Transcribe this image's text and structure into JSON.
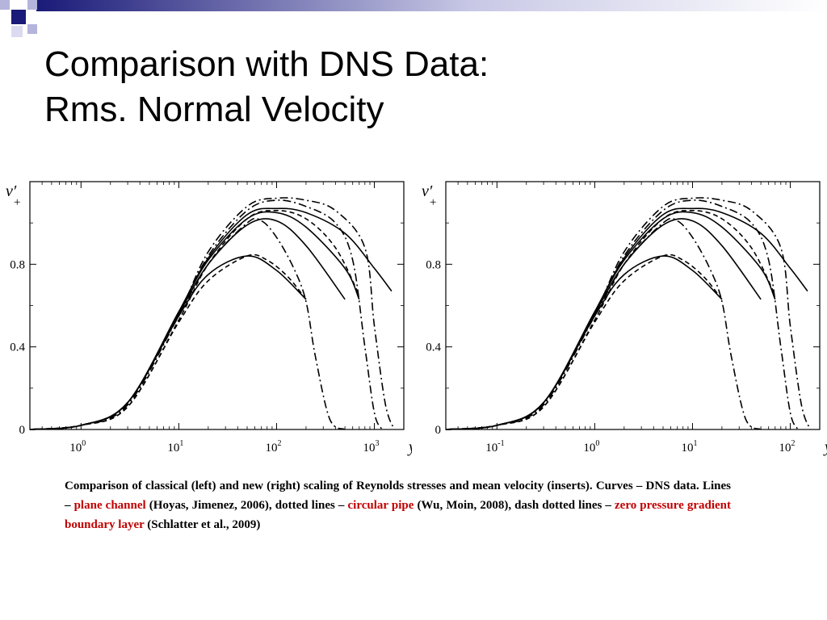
{
  "title": {
    "line1": "Comparison with DNS Data:",
    "line2": "Rms. Normal Velocity"
  },
  "theme": {
    "accent_dark": "#1a1a78",
    "accent_light": "#b4b4dc",
    "highlight": "#c00000"
  },
  "caption": {
    "part1": "Comparison of classical (left) and new (right) scaling of Reynolds stresses and mean velocity (inserts). Curves – DNS data. Lines – ",
    "plane_channel": "plane channel",
    "part2": " (Hoyas, Jimenez, 2006), dotted lines – ",
    "circular_pipe": "circular pipe",
    "part3": " (Wu, Moin, 2008), dash dotted lines – ",
    "boundary_layer": "zero pressure gradient boundary layer",
    "part4": " (Schlatter et al., 2009)"
  },
  "chart_data": [
    {
      "type": "line",
      "title": "",
      "xlabel": "y+",
      "ylabel": "v'+",
      "xscale": "log",
      "xlim": [
        0.3,
        2000
      ],
      "ylim": [
        0,
        1.2
      ],
      "ytick_labels": [
        "0",
        "0.4",
        "0.8"
      ],
      "yticks": [
        0,
        0.4,
        0.8
      ],
      "xtick_labels": [
        {
          "base": "10",
          "exp": "0"
        },
        {
          "base": "10",
          "exp": "1"
        },
        {
          "base": "10",
          "exp": "2"
        },
        {
          "base": "10",
          "exp": "3"
        }
      ],
      "xticks": [
        1,
        10,
        100,
        1000
      ],
      "series": [
        {
          "style": "solid",
          "x": [
            0.3,
            1,
            3,
            10,
            20,
            50,
            100,
            200
          ],
          "y": [
            0,
            0.02,
            0.13,
            0.55,
            0.75,
            0.84,
            0.77,
            0.63
          ]
        },
        {
          "style": "solid",
          "x": [
            0.3,
            1,
            3,
            10,
            20,
            50,
            100,
            200,
            500
          ],
          "y": [
            0,
            0.02,
            0.13,
            0.56,
            0.8,
            0.99,
            1.01,
            0.89,
            0.63
          ]
        },
        {
          "style": "solid",
          "x": [
            0.3,
            1,
            3,
            10,
            20,
            50,
            100,
            200,
            500,
            700
          ],
          "y": [
            0,
            0.02,
            0.13,
            0.57,
            0.82,
            1.02,
            1.05,
            0.98,
            0.78,
            0.63
          ]
        },
        {
          "style": "solid",
          "x": [
            0.3,
            1,
            3,
            10,
            20,
            50,
            100,
            200,
            500,
            1000,
            1500
          ],
          "y": [
            0,
            0.02,
            0.13,
            0.57,
            0.83,
            1.04,
            1.07,
            1.05,
            0.95,
            0.78,
            0.67
          ]
        },
        {
          "style": "dashed",
          "x": [
            0.3,
            1,
            3,
            10,
            20,
            50,
            80,
            130,
            200
          ],
          "y": [
            0,
            0.02,
            0.11,
            0.52,
            0.72,
            0.84,
            0.82,
            0.74,
            0.63
          ]
        },
        {
          "style": "dashed",
          "x": [
            0.3,
            1,
            3,
            10,
            20,
            50,
            100,
            200,
            400,
            700
          ],
          "y": [
            0,
            0.02,
            0.11,
            0.53,
            0.8,
            1.02,
            1.06,
            1.02,
            0.88,
            0.65
          ]
        },
        {
          "style": "dashdot",
          "x": [
            0.3,
            1,
            3,
            10,
            20,
            50,
            70,
            100,
            150,
            200,
            250,
            350,
            500
          ],
          "y": [
            0,
            0.02,
            0.12,
            0.55,
            0.8,
            1.0,
            1.01,
            0.93,
            0.78,
            0.62,
            0.35,
            0.05,
            0
          ]
        },
        {
          "style": "dashdot",
          "x": [
            0.3,
            1,
            3,
            10,
            20,
            50,
            100,
            200,
            400,
            600,
            800,
            1000,
            1200
          ],
          "y": [
            0,
            0.02,
            0.12,
            0.56,
            0.84,
            1.06,
            1.11,
            1.08,
            1.0,
            0.82,
            0.4,
            0.08,
            0
          ]
        },
        {
          "style": "dashdot",
          "x": [
            0.3,
            1,
            3,
            10,
            20,
            50,
            100,
            200,
            400,
            800,
            1000,
            1300,
            1600
          ],
          "y": [
            0,
            0.02,
            0.12,
            0.56,
            0.86,
            1.08,
            1.12,
            1.11,
            1.06,
            0.88,
            0.5,
            0.12,
            0
          ]
        }
      ]
    },
    {
      "type": "line",
      "title": "",
      "xlabel": "yv",
      "ylabel": "v'+",
      "xscale": "log",
      "xlim": [
        0.03,
        200
      ],
      "ylim": [
        0,
        1.2
      ],
      "ytick_labels": [
        "0",
        "0.4",
        "0.8"
      ],
      "yticks": [
        0,
        0.4,
        0.8
      ],
      "xtick_labels": [
        {
          "base": "10",
          "exp": "-1"
        },
        {
          "base": "10",
          "exp": "0"
        },
        {
          "base": "10",
          "exp": "1"
        },
        {
          "base": "10",
          "exp": "2"
        }
      ],
      "xticks": [
        0.1,
        1,
        10,
        100
      ],
      "series": [
        {
          "style": "solid",
          "x": [
            0.03,
            0.1,
            0.3,
            1,
            2,
            5,
            10,
            20
          ],
          "y": [
            0,
            0.02,
            0.13,
            0.55,
            0.75,
            0.84,
            0.77,
            0.63
          ]
        },
        {
          "style": "solid",
          "x": [
            0.03,
            0.1,
            0.3,
            1,
            2,
            5,
            10,
            20,
            50
          ],
          "y": [
            0,
            0.02,
            0.13,
            0.56,
            0.8,
            0.99,
            1.01,
            0.89,
            0.63
          ]
        },
        {
          "style": "solid",
          "x": [
            0.03,
            0.1,
            0.3,
            1,
            2,
            5,
            10,
            20,
            50,
            70
          ],
          "y": [
            0,
            0.02,
            0.13,
            0.57,
            0.82,
            1.02,
            1.05,
            0.98,
            0.78,
            0.63
          ]
        },
        {
          "style": "solid",
          "x": [
            0.03,
            0.1,
            0.3,
            1,
            2,
            5,
            10,
            20,
            50,
            100,
            150
          ],
          "y": [
            0,
            0.02,
            0.13,
            0.57,
            0.83,
            1.04,
            1.07,
            1.05,
            0.95,
            0.78,
            0.67
          ]
        },
        {
          "style": "dashed",
          "x": [
            0.03,
            0.1,
            0.3,
            1,
            2,
            5,
            8,
            13,
            20
          ],
          "y": [
            0,
            0.02,
            0.11,
            0.52,
            0.72,
            0.84,
            0.82,
            0.74,
            0.63
          ]
        },
        {
          "style": "dashed",
          "x": [
            0.03,
            0.1,
            0.3,
            1,
            2,
            5,
            10,
            20,
            40,
            70
          ],
          "y": [
            0,
            0.02,
            0.11,
            0.53,
            0.8,
            1.02,
            1.06,
            1.02,
            0.88,
            0.65
          ]
        },
        {
          "style": "dashdot",
          "x": [
            0.03,
            0.1,
            0.3,
            1,
            2,
            5,
            7,
            10,
            15,
            20,
            25,
            35,
            50
          ],
          "y": [
            0,
            0.02,
            0.12,
            0.55,
            0.8,
            1.0,
            1.01,
            0.93,
            0.78,
            0.62,
            0.35,
            0.05,
            0
          ]
        },
        {
          "style": "dashdot",
          "x": [
            0.03,
            0.1,
            0.3,
            1,
            2,
            5,
            10,
            20,
            40,
            60,
            80,
            100,
            120
          ],
          "y": [
            0,
            0.02,
            0.12,
            0.56,
            0.84,
            1.06,
            1.11,
            1.08,
            1.0,
            0.82,
            0.4,
            0.08,
            0
          ]
        },
        {
          "style": "dashdot",
          "x": [
            0.03,
            0.1,
            0.3,
            1,
            2,
            5,
            10,
            20,
            40,
            80,
            100,
            130,
            160
          ],
          "y": [
            0,
            0.02,
            0.12,
            0.56,
            0.86,
            1.08,
            1.12,
            1.11,
            1.06,
            0.88,
            0.5,
            0.12,
            0
          ]
        }
      ]
    }
  ]
}
